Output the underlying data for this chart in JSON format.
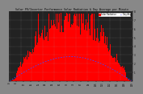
{
  "title": "Solar PV/Inverter Performance Solar Radiation & Day Average per Minute",
  "background_color": "#888888",
  "plot_bg_color": "#222222",
  "bar_color": "#ff0000",
  "line_color": "#4444ff",
  "avg_line_color": "#ffffff",
  "ylim": [
    0,
    8
  ],
  "num_bars": 150,
  "legend_labels": [
    "Solar Radiation",
    "Day Avg"
  ],
  "legend_colors": [
    "#ff0000",
    "#0000ff"
  ],
  "grid_color": "#666666",
  "text_color": "#000000",
  "title_color": "#000000",
  "right_bg": "#888888"
}
